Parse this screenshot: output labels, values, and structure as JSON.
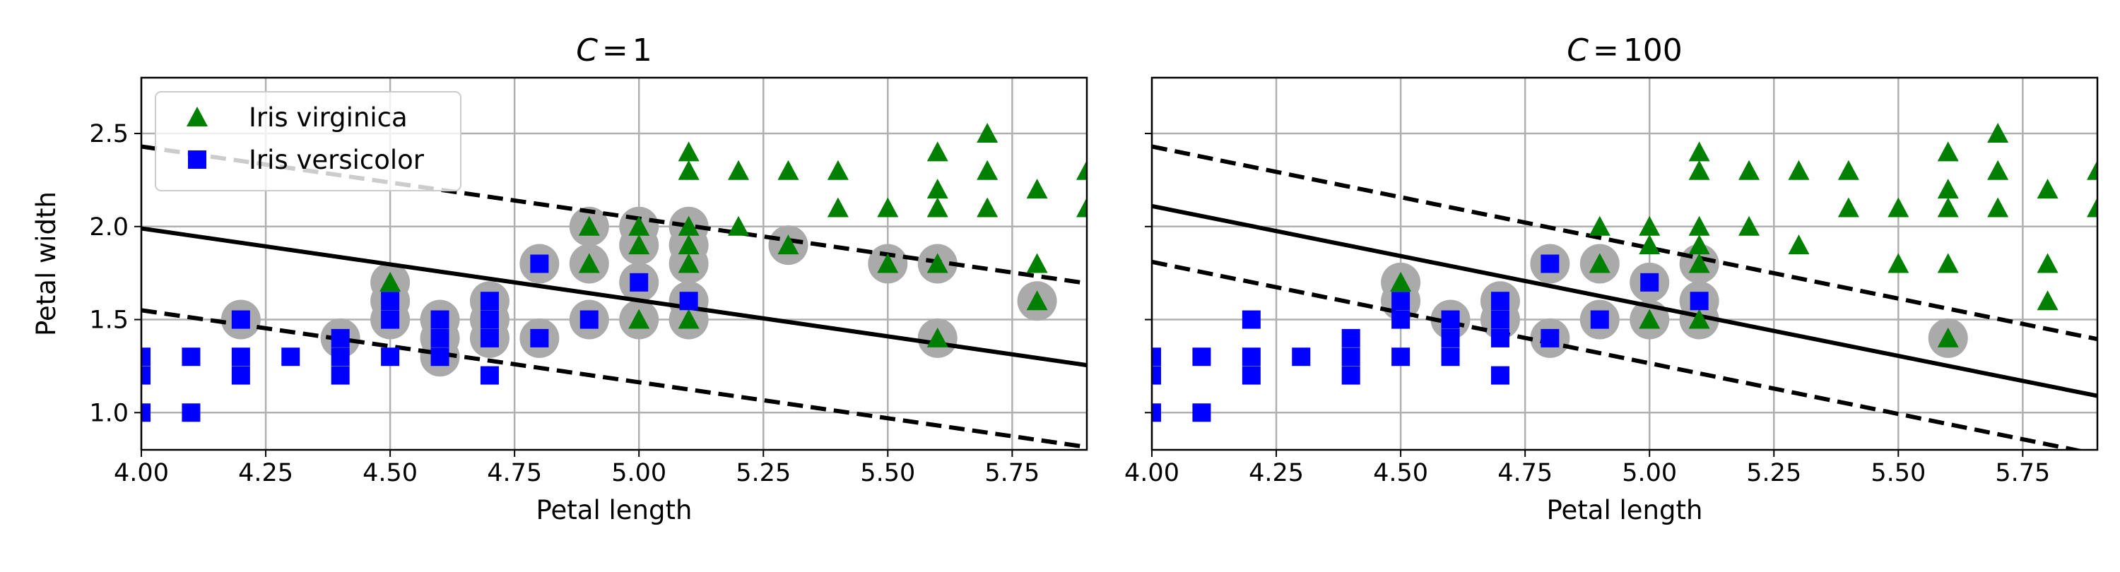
{
  "chart_data": [
    {
      "type": "scatter",
      "title": {
        "var": "C",
        "eq": "=",
        "val": "1"
      },
      "xlabel": "Petal length",
      "ylabel": "Petal width",
      "xlim": [
        4.0,
        5.9
      ],
      "ylim": [
        0.8,
        2.8
      ],
      "xticks": [
        "4.00",
        "4.25",
        "4.50",
        "4.75",
        "5.00",
        "5.25",
        "5.50",
        "5.75"
      ],
      "yticks": [
        "1.0",
        "1.5",
        "2.0",
        "2.5"
      ],
      "grid": true,
      "legend": {
        "placement": "upper-left",
        "entries": [
          "Iris virginica",
          "Iris versicolor"
        ]
      },
      "series": [
        {
          "name": "Iris virginica",
          "marker": "triangle",
          "color": "#008000",
          "points": [
            [
              4.5,
              1.7
            ],
            [
              4.9,
              2.0
            ],
            [
              4.9,
              1.8
            ],
            [
              5.0,
              2.0
            ],
            [
              5.0,
              1.9
            ],
            [
              5.0,
              1.5
            ],
            [
              5.1,
              2.4
            ],
            [
              5.1,
              2.3
            ],
            [
              5.1,
              2.0
            ],
            [
              5.1,
              1.9
            ],
            [
              5.1,
              1.8
            ],
            [
              5.1,
              1.5
            ],
            [
              5.2,
              2.3
            ],
            [
              5.2,
              2.0
            ],
            [
              5.3,
              2.3
            ],
            [
              5.3,
              1.9
            ],
            [
              5.4,
              2.3
            ],
            [
              5.4,
              2.1
            ],
            [
              5.5,
              2.1
            ],
            [
              5.5,
              1.8
            ],
            [
              5.6,
              2.4
            ],
            [
              5.6,
              2.2
            ],
            [
              5.6,
              2.1
            ],
            [
              5.6,
              1.8
            ],
            [
              5.6,
              1.4
            ],
            [
              5.7,
              2.5
            ],
            [
              5.7,
              2.3
            ],
            [
              5.7,
              2.1
            ],
            [
              5.8,
              2.2
            ],
            [
              5.8,
              1.8
            ],
            [
              5.8,
              1.6
            ],
            [
              5.9,
              2.3
            ],
            [
              5.9,
              2.1
            ]
          ]
        },
        {
          "name": "Iris versicolor",
          "marker": "square",
          "color": "#0000ff",
          "points": [
            [
              4.0,
              1.0
            ],
            [
              4.0,
              1.2
            ],
            [
              4.0,
              1.3
            ],
            [
              4.1,
              1.0
            ],
            [
              4.1,
              1.3
            ],
            [
              4.2,
              1.2
            ],
            [
              4.2,
              1.3
            ],
            [
              4.2,
              1.5
            ],
            [
              4.3,
              1.3
            ],
            [
              4.4,
              1.2
            ],
            [
              4.4,
              1.3
            ],
            [
              4.4,
              1.4
            ],
            [
              4.5,
              1.3
            ],
            [
              4.5,
              1.5
            ],
            [
              4.5,
              1.6
            ],
            [
              4.6,
              1.3
            ],
            [
              4.6,
              1.4
            ],
            [
              4.6,
              1.5
            ],
            [
              4.7,
              1.2
            ],
            [
              4.7,
              1.4
            ],
            [
              4.7,
              1.5
            ],
            [
              4.7,
              1.6
            ],
            [
              4.8,
              1.4
            ],
            [
              4.8,
              1.8
            ],
            [
              4.9,
              1.5
            ],
            [
              5.0,
              1.7
            ],
            [
              5.1,
              1.6
            ]
          ]
        }
      ],
      "support_vectors": [
        [
          4.2,
          1.5
        ],
        [
          4.4,
          1.4
        ],
        [
          4.5,
          1.5
        ],
        [
          4.5,
          1.6
        ],
        [
          4.5,
          1.7
        ],
        [
          4.6,
          1.3
        ],
        [
          4.6,
          1.4
        ],
        [
          4.6,
          1.5
        ],
        [
          4.7,
          1.4
        ],
        [
          4.7,
          1.5
        ],
        [
          4.7,
          1.6
        ],
        [
          4.8,
          1.4
        ],
        [
          4.8,
          1.8
        ],
        [
          4.9,
          1.5
        ],
        [
          4.9,
          1.8
        ],
        [
          4.9,
          2.0
        ],
        [
          5.0,
          1.5
        ],
        [
          5.0,
          1.7
        ],
        [
          5.0,
          1.9
        ],
        [
          5.0,
          2.0
        ],
        [
          5.1,
          1.5
        ],
        [
          5.1,
          1.6
        ],
        [
          5.1,
          1.8
        ],
        [
          5.1,
          1.9
        ],
        [
          5.1,
          2.0
        ],
        [
          5.3,
          1.9
        ],
        [
          5.5,
          1.8
        ],
        [
          5.6,
          1.4
        ],
        [
          5.6,
          1.8
        ],
        [
          5.8,
          1.6
        ]
      ],
      "decision_boundary": {
        "points": [
          [
            4.0,
            1.99
          ],
          [
            5.9,
            1.255
          ]
        ],
        "style": "solid"
      },
      "margins": [
        {
          "points": [
            [
              4.0,
              2.43
            ],
            [
              5.9,
              1.695
            ]
          ],
          "style": "dashed"
        },
        {
          "points": [
            [
              4.0,
              1.55
            ],
            [
              5.9,
              0.815
            ]
          ],
          "style": "dashed"
        }
      ]
    },
    {
      "type": "scatter",
      "title": {
        "var": "C",
        "eq": "=",
        "val": "100"
      },
      "xlabel": "Petal length",
      "ylabel": "",
      "xlim": [
        4.0,
        5.9
      ],
      "ylim": [
        0.8,
        2.8
      ],
      "xticks": [
        "4.00",
        "4.25",
        "4.50",
        "4.75",
        "5.00",
        "5.25",
        "5.50",
        "5.75"
      ],
      "yticks": [],
      "grid": true,
      "series": [
        {
          "name": "Iris virginica",
          "marker": "triangle",
          "color": "#008000",
          "points": [
            [
              4.5,
              1.7
            ],
            [
              4.9,
              2.0
            ],
            [
              4.9,
              1.8
            ],
            [
              5.0,
              2.0
            ],
            [
              5.0,
              1.9
            ],
            [
              5.0,
              1.5
            ],
            [
              5.1,
              2.4
            ],
            [
              5.1,
              2.3
            ],
            [
              5.1,
              2.0
            ],
            [
              5.1,
              1.9
            ],
            [
              5.1,
              1.8
            ],
            [
              5.1,
              1.5
            ],
            [
              5.2,
              2.3
            ],
            [
              5.2,
              2.0
            ],
            [
              5.3,
              2.3
            ],
            [
              5.3,
              1.9
            ],
            [
              5.4,
              2.3
            ],
            [
              5.4,
              2.1
            ],
            [
              5.5,
              2.1
            ],
            [
              5.5,
              1.8
            ],
            [
              5.6,
              2.4
            ],
            [
              5.6,
              2.2
            ],
            [
              5.6,
              2.1
            ],
            [
              5.6,
              1.8
            ],
            [
              5.6,
              1.4
            ],
            [
              5.7,
              2.5
            ],
            [
              5.7,
              2.3
            ],
            [
              5.7,
              2.1
            ],
            [
              5.8,
              2.2
            ],
            [
              5.8,
              1.8
            ],
            [
              5.8,
              1.6
            ],
            [
              5.9,
              2.3
            ],
            [
              5.9,
              2.1
            ]
          ]
        },
        {
          "name": "Iris versicolor",
          "marker": "square",
          "color": "#0000ff",
          "points": [
            [
              4.0,
              1.0
            ],
            [
              4.0,
              1.2
            ],
            [
              4.0,
              1.3
            ],
            [
              4.1,
              1.0
            ],
            [
              4.1,
              1.3
            ],
            [
              4.2,
              1.2
            ],
            [
              4.2,
              1.3
            ],
            [
              4.2,
              1.5
            ],
            [
              4.3,
              1.3
            ],
            [
              4.4,
              1.2
            ],
            [
              4.4,
              1.3
            ],
            [
              4.4,
              1.4
            ],
            [
              4.5,
              1.3
            ],
            [
              4.5,
              1.5
            ],
            [
              4.5,
              1.6
            ],
            [
              4.6,
              1.3
            ],
            [
              4.6,
              1.4
            ],
            [
              4.6,
              1.5
            ],
            [
              4.7,
              1.2
            ],
            [
              4.7,
              1.4
            ],
            [
              4.7,
              1.5
            ],
            [
              4.7,
              1.6
            ],
            [
              4.8,
              1.4
            ],
            [
              4.8,
              1.8
            ],
            [
              4.9,
              1.5
            ],
            [
              5.0,
              1.7
            ],
            [
              5.1,
              1.6
            ]
          ]
        }
      ],
      "support_vectors": [
        [
          4.5,
          1.6
        ],
        [
          4.5,
          1.7
        ],
        [
          4.6,
          1.5
        ],
        [
          4.7,
          1.5
        ],
        [
          4.7,
          1.6
        ],
        [
          4.8,
          1.4
        ],
        [
          4.8,
          1.8
        ],
        [
          4.9,
          1.5
        ],
        [
          4.9,
          1.8
        ],
        [
          5.0,
          1.5
        ],
        [
          5.0,
          1.7
        ],
        [
          5.1,
          1.5
        ],
        [
          5.1,
          1.6
        ],
        [
          5.1,
          1.8
        ],
        [
          5.6,
          1.4
        ]
      ],
      "decision_boundary": {
        "points": [
          [
            4.0,
            2.11
          ],
          [
            5.9,
            1.09
          ]
        ],
        "style": "solid"
      },
      "margins": [
        {
          "points": [
            [
              4.0,
              2.43
            ],
            [
              5.9,
              1.395
            ]
          ],
          "style": "dashed"
        },
        {
          "points": [
            [
              4.0,
              1.81
            ],
            [
              5.9,
              0.775
            ]
          ],
          "style": "dashed"
        }
      ]
    }
  ]
}
